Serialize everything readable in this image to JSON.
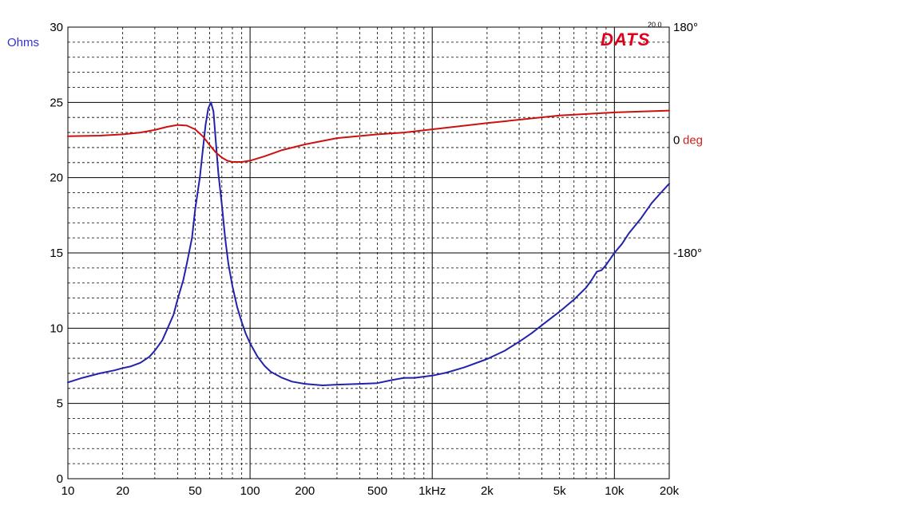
{
  "chart_data": {
    "type": "line",
    "brand": "DATS",
    "version": "20.0",
    "x_scale": "log",
    "xlim": [
      10,
      20000
    ],
    "x_ticks": [
      {
        "value": 10,
        "label": "10"
      },
      {
        "value": 20,
        "label": "20"
      },
      {
        "value": 50,
        "label": "50"
      },
      {
        "value": 100,
        "label": "100"
      },
      {
        "value": 200,
        "label": "200"
      },
      {
        "value": 500,
        "label": "500"
      },
      {
        "value": 1000,
        "label": "1kHz"
      },
      {
        "value": 2000,
        "label": "2k"
      },
      {
        "value": 5000,
        "label": "5k"
      },
      {
        "value": 10000,
        "label": "10k"
      },
      {
        "value": 20000,
        "label": "20k"
      }
    ],
    "y_left": {
      "label": "Ohms",
      "ylim": [
        0,
        30
      ],
      "ticks": [
        "0",
        "5",
        "10",
        "15",
        "20",
        "25",
        "30"
      ],
      "tick_values": [
        0,
        5,
        10,
        15,
        20,
        25,
        30
      ]
    },
    "y_right": {
      "ylim": [
        -540,
        180
      ],
      "ticks": [
        {
          "value": 180,
          "label": "180°"
        },
        {
          "value": 0,
          "label": "0",
          "unit": "deg"
        },
        {
          "value": -180,
          "label": "-180°"
        }
      ]
    },
    "grid": true,
    "series": [
      {
        "axis": "left",
        "color": "#2222aa",
        "x": [
          10,
          12,
          15,
          18,
          20,
          22,
          25,
          28,
          30,
          33,
          35,
          38,
          40,
          43,
          45,
          48,
          50,
          53,
          55,
          57,
          59,
          61,
          63,
          65,
          67,
          70,
          73,
          76,
          80,
          85,
          90,
          95,
          100,
          110,
          120,
          130,
          150,
          170,
          200,
          250,
          300,
          400,
          500,
          600,
          700,
          800,
          1000,
          1200,
          1500,
          2000,
          2500,
          3000,
          3500,
          4000,
          5000,
          6000,
          7000,
          7500,
          8000,
          8500,
          9000,
          10000,
          11000,
          12000,
          14000,
          16000,
          18000,
          20000
        ],
        "y": [
          6.4,
          6.7,
          7.0,
          7.2,
          7.35,
          7.45,
          7.7,
          8.1,
          8.5,
          9.2,
          9.9,
          10.9,
          11.9,
          13.2,
          14.3,
          16.0,
          17.9,
          20.0,
          21.8,
          23.5,
          24.6,
          25.0,
          24.4,
          22.3,
          20.3,
          18.2,
          16.0,
          14.3,
          12.8,
          11.4,
          10.4,
          9.6,
          9.0,
          8.1,
          7.5,
          7.1,
          6.7,
          6.45,
          6.3,
          6.2,
          6.25,
          6.3,
          6.35,
          6.55,
          6.7,
          6.7,
          6.85,
          7.05,
          7.4,
          7.95,
          8.5,
          9.1,
          9.65,
          10.2,
          11.1,
          11.9,
          12.7,
          13.2,
          13.75,
          13.85,
          14.2,
          15.0,
          15.6,
          16.3,
          17.3,
          18.3,
          19.0,
          19.6
        ]
      },
      {
        "axis": "right",
        "color": "#cc1111",
        "x": [
          10,
          15,
          20,
          25,
          30,
          35,
          40,
          45,
          50,
          55,
          60,
          65,
          70,
          75,
          80,
          90,
          100,
          120,
          150,
          200,
          300,
          500,
          700,
          1000,
          2000,
          5000,
          10000,
          20000
        ],
        "y": [
          6,
          7,
          9,
          12,
          16,
          21,
          24,
          23,
          17,
          6,
          -8,
          -20,
          -28,
          -33,
          -35,
          -35,
          -33,
          -26,
          -16,
          -7,
          3,
          9,
          12,
          17,
          27,
          39,
          44,
          47
        ]
      }
    ]
  }
}
